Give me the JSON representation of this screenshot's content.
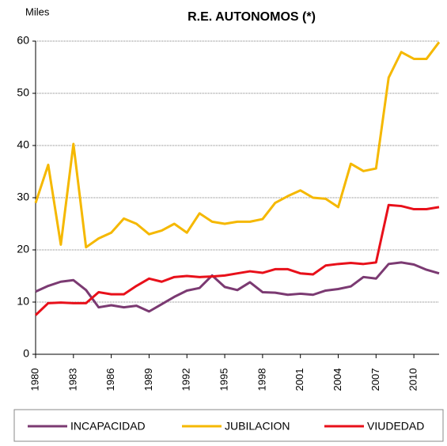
{
  "chart_data": {
    "type": "line",
    "title": "R.E. AUTONOMOS (*)",
    "y_label": "Miles",
    "x": [
      1980,
      1981,
      1982,
      1983,
      1984,
      1985,
      1986,
      1987,
      1988,
      1989,
      1990,
      1991,
      1992,
      1993,
      1994,
      1995,
      1996,
      1997,
      1998,
      1999,
      2000,
      2001,
      2002,
      2003,
      2004,
      2005,
      2006,
      2007,
      2008,
      2009,
      2010,
      2011,
      2012
    ],
    "xlim": [
      1980,
      2012
    ],
    "xticks": [
      1980,
      1983,
      1986,
      1989,
      1992,
      1995,
      1998,
      2001,
      2004,
      2007,
      2010
    ],
    "ylim": [
      0,
      60
    ],
    "yticks": [
      0,
      10,
      20,
      30,
      40,
      50,
      60
    ],
    "grid": true,
    "legend": "bottom",
    "series": [
      {
        "name": "INCAPACIDAD",
        "color": "#7b3a72",
        "values": [
          12,
          13.1,
          13.9,
          14.2,
          12.3,
          9,
          9.4,
          9,
          9.3,
          8.2,
          9.6,
          11,
          12.2,
          12.7,
          15.1,
          12.9,
          12.3,
          13.8,
          11.9,
          11.8,
          11.4,
          11.6,
          11.4,
          12.2,
          12.5,
          13,
          14.8,
          14.5,
          17.3,
          17.6,
          17.2,
          16.2,
          15.5
        ]
      },
      {
        "name": "JUBILACION",
        "color": "#f5b800",
        "values": [
          29,
          36.3,
          21,
          40.3,
          20.5,
          22.2,
          23.3,
          26,
          25,
          23,
          23.7,
          25,
          23.3,
          27,
          25.4,
          25,
          25.4,
          25.4,
          25.9,
          29,
          30.3,
          31.4,
          30,
          29.8,
          28.2,
          36.5,
          35.1,
          35.6,
          53,
          57.9,
          56.6,
          56.6,
          59.8
        ]
      },
      {
        "name": "VIUDEDAD",
        "color": "#e8101a",
        "values": [
          7.5,
          9.8,
          9.9,
          9.8,
          9.8,
          11.9,
          11.5,
          11.5,
          13.1,
          14.5,
          13.9,
          14.8,
          15,
          14.8,
          14.9,
          15.1,
          15.5,
          15.9,
          15.6,
          16.3,
          16.3,
          15.5,
          15.3,
          17,
          17.3,
          17.5,
          17.3,
          17.6,
          28.6,
          28.4,
          27.8,
          27.8,
          28.2
        ]
      }
    ]
  }
}
